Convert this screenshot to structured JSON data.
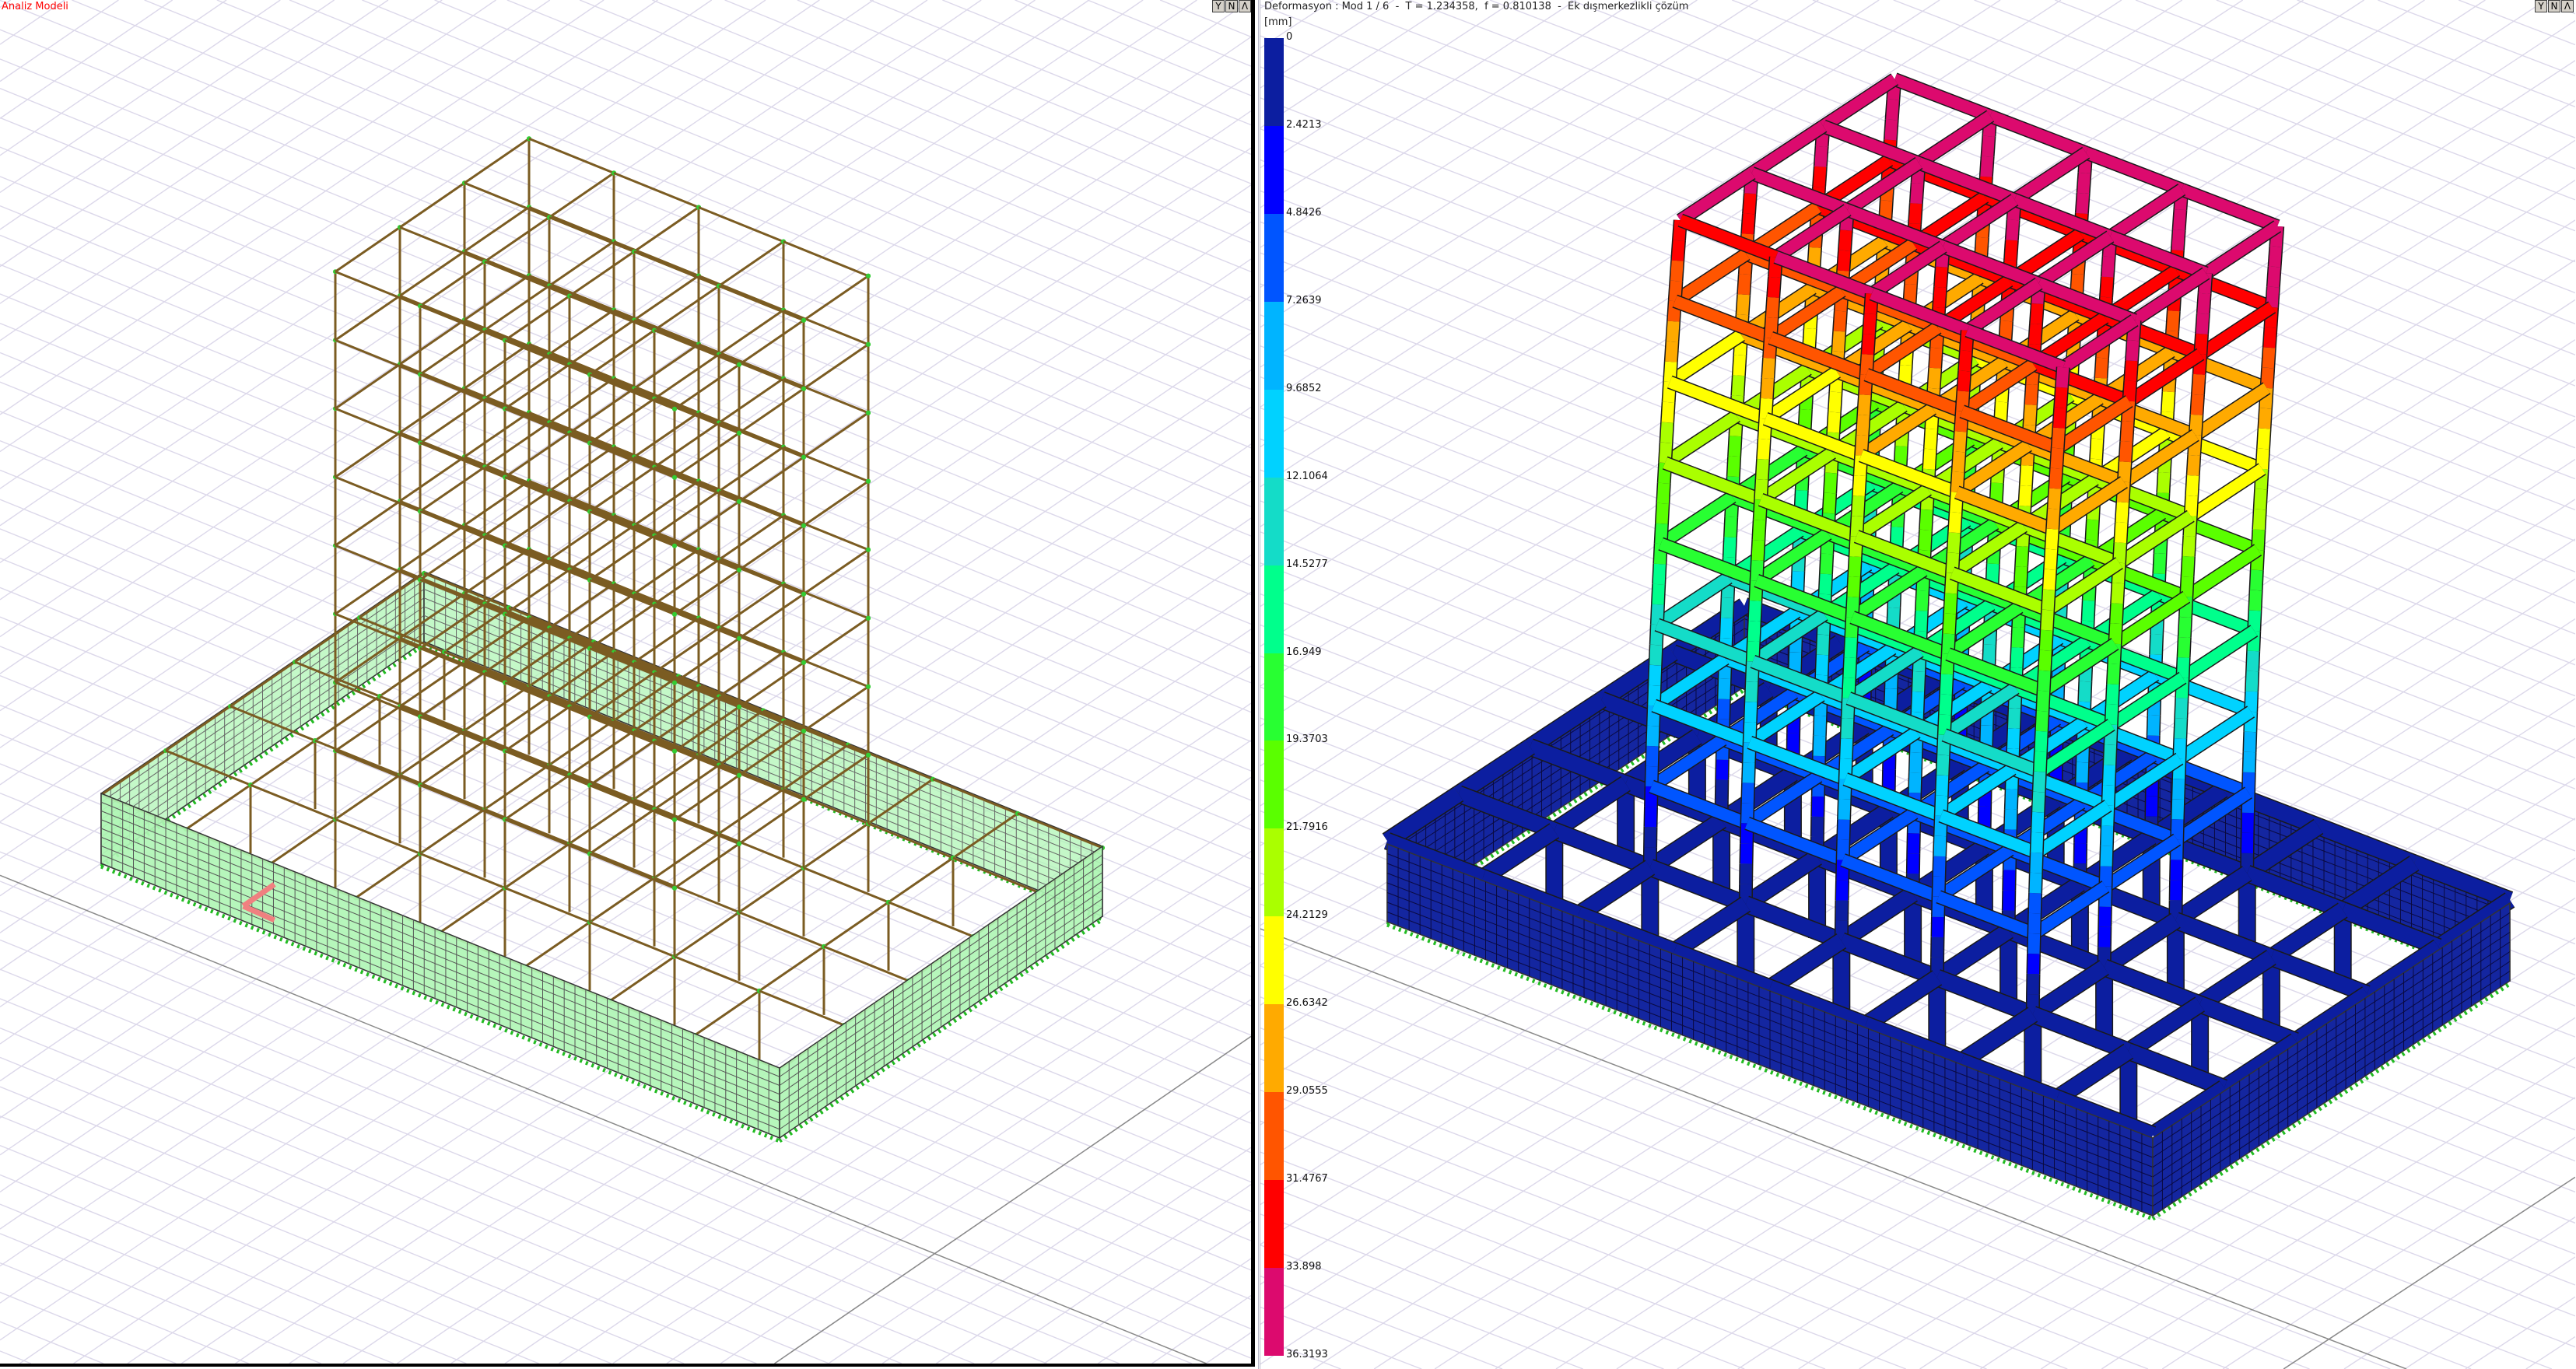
{
  "left_panel": {
    "title": "Analiz Modeli",
    "buttons": [
      {
        "label": "Y",
        "icon": "filter-icon"
      },
      {
        "label": "N",
        "icon": "n-icon"
      },
      {
        "label": "Λ",
        "icon": "caret-up-icon"
      }
    ],
    "wall_color": "#b0f5b5",
    "frame_color": "#7b5c22"
  },
  "right_panel": {
    "title": "Deformasyon : Mod 1 / 6  -  T = 1.234358,  f = 0.810138  -  Ek dışmerkezlikli çözüm",
    "buttons": [
      {
        "label": "Y",
        "icon": "filter-icon"
      },
      {
        "label": "N",
        "icon": "n-icon"
      },
      {
        "label": "Λ",
        "icon": "caret-up-icon"
      }
    ],
    "legend": {
      "unit": "[mm]",
      "values": [
        "0",
        "2.4213",
        "4.8426",
        "7.2639",
        "9.6852",
        "12.1064",
        "14.5277",
        "16.949",
        "19.3703",
        "21.7916",
        "24.2129",
        "26.6342",
        "29.0555",
        "31.4767",
        "33.898",
        "36.3193"
      ],
      "colors": [
        "#0c1ea0",
        "#0000ff",
        "#0055ff",
        "#00b4ff",
        "#00d2ff",
        "#14dcc8",
        "#00ff8c",
        "#28ff32",
        "#5aff00",
        "#aaff00",
        "#ffff00",
        "#ffaa00",
        "#ff5500",
        "#ff0000",
        "#dc0a6e"
      ]
    },
    "max_deformation_mm": 36.3193
  },
  "grid_color": "#dcd8ea"
}
